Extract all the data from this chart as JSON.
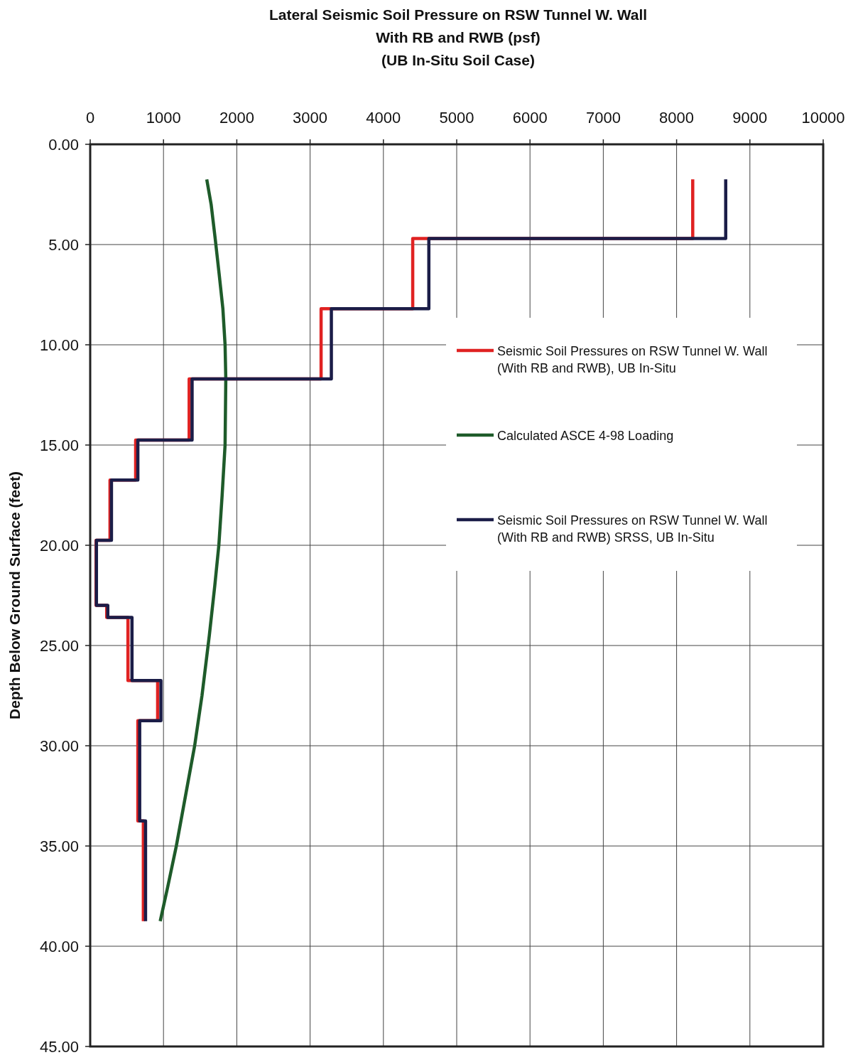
{
  "chart_data": {
    "type": "line",
    "title": "Lateral Seismic Soil Pressure on RSW Tunnel W. Wall\nWith RB and RWB (psf)\n(UB In-Situ Soil Case)",
    "ylabel": "Depth Below Ground Surface (feet)",
    "xlim": [
      0,
      10000
    ],
    "xticks": [
      0,
      1000,
      2000,
      3000,
      4000,
      5000,
      6000,
      7000,
      8000,
      9000,
      10000
    ],
    "ylim": [
      45,
      0
    ],
    "yticks": [
      {
        "value": 0,
        "label": "0.00"
      },
      {
        "value": 5,
        "label": "5.00"
      },
      {
        "value": 10,
        "label": "10.00"
      },
      {
        "value": 15,
        "label": "15.00"
      },
      {
        "value": 20,
        "label": "20.00"
      },
      {
        "value": 25,
        "label": "25.00"
      },
      {
        "value": 30,
        "label": "30.00"
      },
      {
        "value": 35,
        "label": "35.00"
      },
      {
        "value": 40,
        "label": "40.00"
      },
      {
        "value": 45,
        "label": "45.00"
      }
    ],
    "grid": true,
    "legend": "right",
    "series": [
      {
        "name": "Seismic Soil Pressures on RSW Tunnel W. Wall (With RB and RWB), UB In-Situ",
        "color": "#e02222",
        "x": [
          8220,
          8220,
          4400,
          4400,
          3150,
          3150,
          1350,
          1350,
          620,
          620,
          270,
          270,
          80,
          80,
          225,
          225,
          515,
          515,
          920,
          920,
          650,
          650,
          725,
          725
        ],
        "values": [
          1.75,
          4.7,
          4.7,
          8.2,
          8.2,
          11.7,
          11.7,
          14.75,
          14.75,
          16.75,
          16.75,
          19.75,
          19.75,
          23.0,
          23.0,
          23.6,
          23.6,
          26.75,
          26.75,
          28.75,
          28.75,
          33.75,
          33.75,
          38.75
        ]
      },
      {
        "name": "Calculated ASCE 4-98 Loading",
        "color": "#1e5b2a",
        "x": [
          1590,
          1650,
          1705,
          1760,
          1810,
          1840,
          1850,
          1840,
          1800,
          1755,
          1700,
          1625,
          1525,
          1425,
          1300,
          1175,
          1060,
          955
        ],
        "values": [
          1.75,
          3,
          4.7,
          6.5,
          8.2,
          10,
          11.7,
          15,
          17.5,
          20,
          22,
          24.5,
          27.5,
          30,
          32.5,
          35,
          37,
          38.75
        ]
      },
      {
        "name": "Seismic Soil Pressures on RSW Tunnel W. Wall (With RB and RWB) SRSS, UB In-Situ",
        "color": "#1b1d48",
        "x": [
          8670,
          8670,
          4620,
          4620,
          3290,
          3290,
          1390,
          1390,
          650,
          650,
          290,
          290,
          85,
          85,
          240,
          240,
          570,
          570,
          965,
          965,
          675,
          675,
          755,
          755
        ],
        "values": [
          1.75,
          4.7,
          4.7,
          8.2,
          8.2,
          11.7,
          11.7,
          14.75,
          14.75,
          16.75,
          16.75,
          19.75,
          19.75,
          23.0,
          23.0,
          23.6,
          23.6,
          26.75,
          26.75,
          28.75,
          28.75,
          33.75,
          33.75,
          38.75
        ]
      }
    ]
  }
}
